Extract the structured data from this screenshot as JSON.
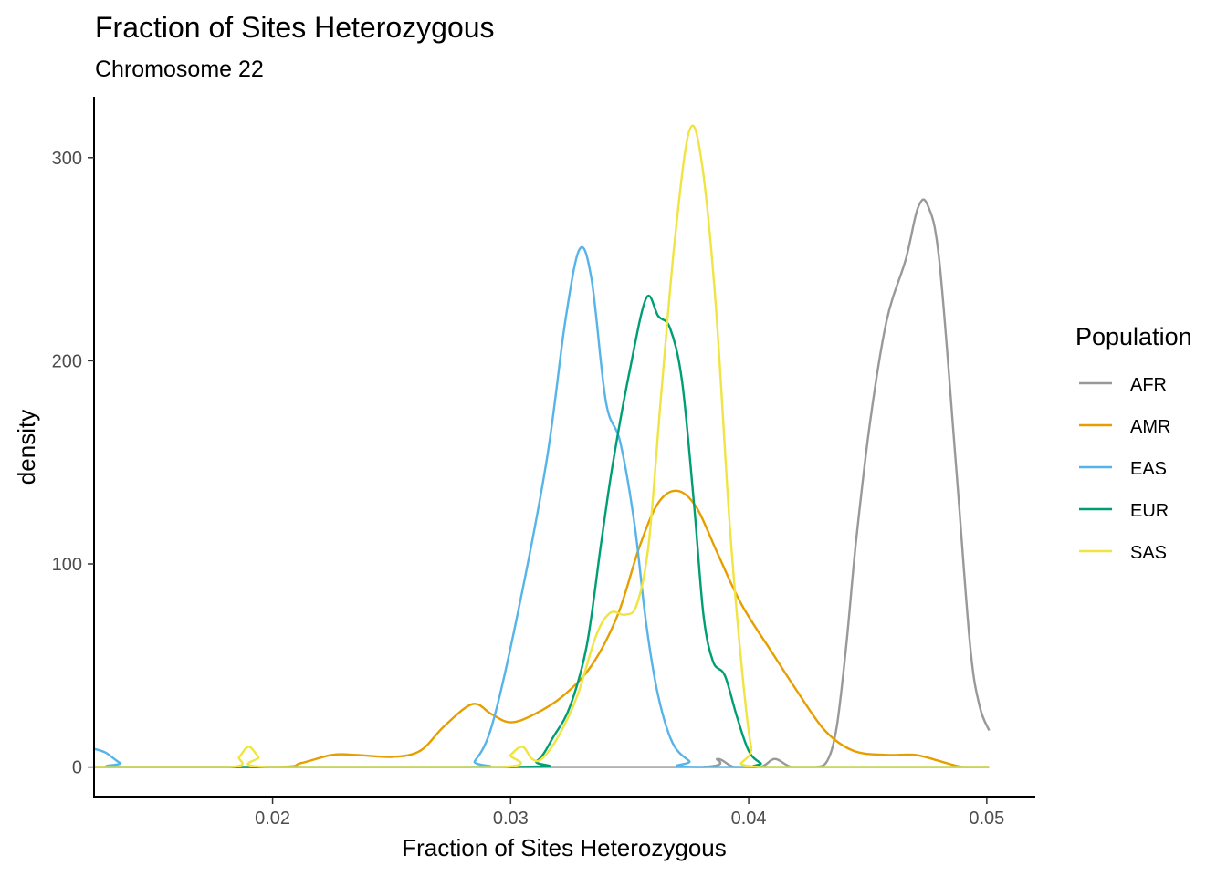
{
  "chart_data": {
    "type": "line",
    "title": "Fraction of Sites Heterozygous",
    "subtitle": "Chromosome 22",
    "xlabel": "Fraction of Sites Heterozygous",
    "ylabel": "density",
    "xlim": [
      0.0125,
      0.052
    ],
    "ylim": [
      -15,
      330
    ],
    "x_ticks": [
      0.02,
      0.03,
      0.04,
      0.05
    ],
    "x_tick_labels": [
      "0.02",
      "0.03",
      "0.04",
      "0.05"
    ],
    "y_ticks": [
      0,
      100,
      200,
      300
    ],
    "y_tick_labels": [
      "0",
      "100",
      "200",
      "300"
    ],
    "grid": false,
    "legend": {
      "title": "Population",
      "position": "right"
    },
    "series": [
      {
        "name": "AFR",
        "color": "#999999",
        "points": [
          [
            0.0125,
            0
          ],
          [
            0.03,
            0
          ],
          [
            0.038,
            0
          ],
          [
            0.0387,
            4
          ],
          [
            0.0394,
            0
          ],
          [
            0.0405,
            0
          ],
          [
            0.0411,
            4
          ],
          [
            0.0418,
            0
          ],
          [
            0.0428,
            0
          ],
          [
            0.0433,
            3
          ],
          [
            0.0437,
            20
          ],
          [
            0.0441,
            60
          ],
          [
            0.0445,
            110
          ],
          [
            0.0451,
            170
          ],
          [
            0.0458,
            220
          ],
          [
            0.0466,
            250
          ],
          [
            0.0471,
            275
          ],
          [
            0.0475,
            277
          ],
          [
            0.048,
            250
          ],
          [
            0.0487,
            150
          ],
          [
            0.0493,
            60
          ],
          [
            0.0497,
            30
          ],
          [
            0.0501,
            18
          ]
        ]
      },
      {
        "name": "AMR",
        "color": "#E69F00",
        "points": [
          [
            0.0125,
            0
          ],
          [
            0.02,
            0
          ],
          [
            0.0212,
            2
          ],
          [
            0.0225,
            6
          ],
          [
            0.0235,
            6
          ],
          [
            0.025,
            5
          ],
          [
            0.0262,
            8
          ],
          [
            0.0272,
            20
          ],
          [
            0.0284,
            31
          ],
          [
            0.0292,
            26
          ],
          [
            0.03,
            22
          ],
          [
            0.031,
            26
          ],
          [
            0.0322,
            35
          ],
          [
            0.0334,
            50
          ],
          [
            0.0345,
            75
          ],
          [
            0.0354,
            108
          ],
          [
            0.0362,
            130
          ],
          [
            0.037,
            136
          ],
          [
            0.0378,
            128
          ],
          [
            0.0387,
            105
          ],
          [
            0.0397,
            80
          ],
          [
            0.041,
            56
          ],
          [
            0.042,
            38
          ],
          [
            0.0432,
            18
          ],
          [
            0.0444,
            8
          ],
          [
            0.0458,
            6
          ],
          [
            0.047,
            6
          ],
          [
            0.048,
            3
          ],
          [
            0.049,
            0
          ],
          [
            0.0501,
            0
          ]
        ]
      },
      {
        "name": "EAS",
        "color": "#56B4E9",
        "points": [
          [
            0.0125,
            9
          ],
          [
            0.013,
            7
          ],
          [
            0.0136,
            2
          ],
          [
            0.0142,
            0
          ],
          [
            0.028,
            0
          ],
          [
            0.0285,
            3
          ],
          [
            0.0292,
            20
          ],
          [
            0.0302,
            70
          ],
          [
            0.0315,
            150
          ],
          [
            0.0323,
            220
          ],
          [
            0.0329,
            255
          ],
          [
            0.0334,
            240
          ],
          [
            0.034,
            180
          ],
          [
            0.0346,
            160
          ],
          [
            0.0352,
            120
          ],
          [
            0.0357,
            70
          ],
          [
            0.0362,
            35
          ],
          [
            0.0368,
            12
          ],
          [
            0.0375,
            3
          ],
          [
            0.038,
            0
          ],
          [
            0.0501,
            0
          ]
        ]
      },
      {
        "name": "EUR",
        "color": "#009E73",
        "points": [
          [
            0.0125,
            0
          ],
          [
            0.03,
            0
          ],
          [
            0.0311,
            3
          ],
          [
            0.0318,
            15
          ],
          [
            0.0325,
            30
          ],
          [
            0.0332,
            60
          ],
          [
            0.0338,
            110
          ],
          [
            0.0343,
            150
          ],
          [
            0.035,
            195
          ],
          [
            0.0357,
            231
          ],
          [
            0.0362,
            222
          ],
          [
            0.0367,
            216
          ],
          [
            0.0372,
            190
          ],
          [
            0.0377,
            130
          ],
          [
            0.0381,
            75
          ],
          [
            0.0385,
            52
          ],
          [
            0.039,
            45
          ],
          [
            0.0395,
            25
          ],
          [
            0.04,
            8
          ],
          [
            0.0405,
            2
          ],
          [
            0.041,
            0
          ],
          [
            0.0501,
            0
          ]
        ]
      },
      {
        "name": "SAS",
        "color": "#F0E442",
        "points": [
          [
            0.0125,
            0
          ],
          [
            0.0182,
            0
          ],
          [
            0.0186,
            5
          ],
          [
            0.019,
            10
          ],
          [
            0.0194,
            5
          ],
          [
            0.0198,
            0
          ],
          [
            0.0296,
            0
          ],
          [
            0.03,
            6
          ],
          [
            0.0305,
            10
          ],
          [
            0.0309,
            4
          ],
          [
            0.0313,
            4
          ],
          [
            0.032,
            15
          ],
          [
            0.0328,
            35
          ],
          [
            0.0336,
            65
          ],
          [
            0.0342,
            76
          ],
          [
            0.0348,
            75
          ],
          [
            0.0353,
            80
          ],
          [
            0.0358,
            110
          ],
          [
            0.0363,
            180
          ],
          [
            0.0369,
            260
          ],
          [
            0.0375,
            313
          ],
          [
            0.038,
            300
          ],
          [
            0.0386,
            230
          ],
          [
            0.0392,
            120
          ],
          [
            0.0397,
            50
          ],
          [
            0.0401,
            10
          ],
          [
            0.0405,
            0
          ],
          [
            0.0501,
            0
          ]
        ]
      }
    ]
  }
}
